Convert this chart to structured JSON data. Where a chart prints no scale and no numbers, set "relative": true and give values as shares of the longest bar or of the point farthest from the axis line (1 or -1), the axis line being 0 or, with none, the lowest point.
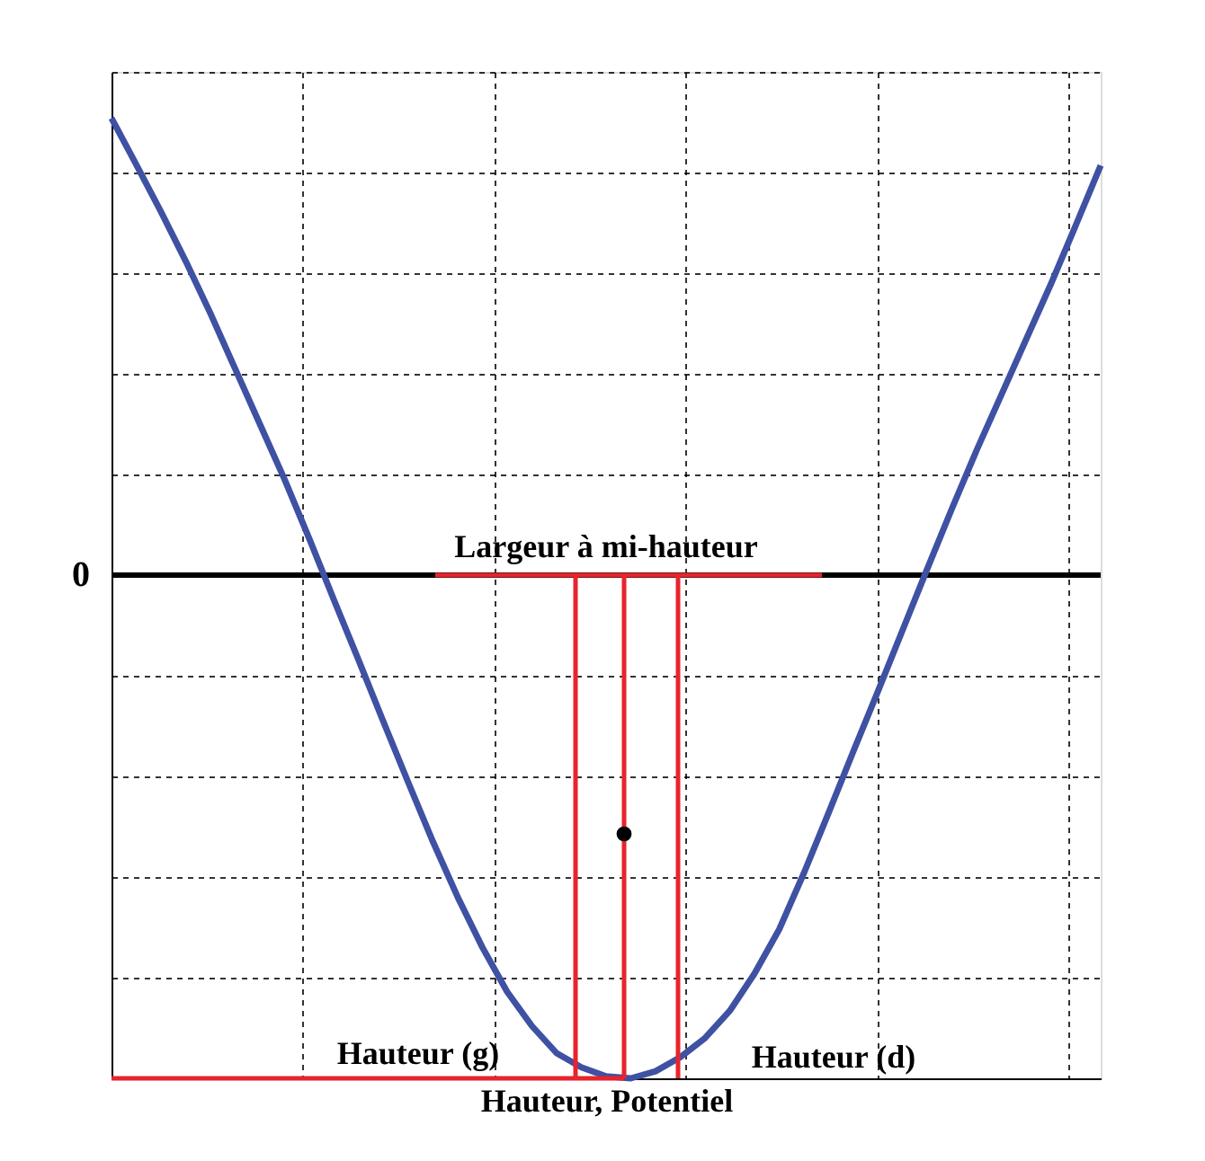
{
  "chart_data": {
    "type": "line",
    "xlabel": "Hauteur, Potentiel",
    "relative": true,
    "categories": [
      null,
      null,
      null,
      null,
      null,
      null,
      null,
      null,
      null,
      null,
      null,
      null,
      null,
      null,
      null,
      null,
      null,
      null,
      null,
      null,
      null,
      null,
      null,
      null,
      null,
      null,
      null,
      null,
      null,
      null,
      null,
      null,
      null,
      null,
      null,
      null,
      null,
      null,
      null,
      null,
      null
    ],
    "grid": true,
    "legend": false,
    "line_style": "solid",
    "series": [
      {
        "color": "#3f51a3",
        "values": [
          0.908,
          0.816,
          0.722,
          0.624,
          0.52,
          0.41,
          0.3,
          0.19,
          0.072,
          -0.05,
          -0.17,
          -0.292,
          -0.412,
          -0.53,
          -0.64,
          -0.74,
          -0.828,
          -0.896,
          -0.95,
          -0.978,
          -0.996,
          -1.0,
          -0.986,
          -0.958,
          -0.92,
          -0.866,
          -0.792,
          -0.704,
          -0.592,
          -0.472,
          -0.35,
          -0.23,
          -0.108,
          0.014,
          0.134,
          0.25,
          0.36,
          0.47,
          0.58,
          0.696,
          0.814
        ]
      }
    ],
    "annotations": [
      "0",
      "Largeur à mi-hauteur",
      "Hauteur (g)",
      "Hauteur (d)"
    ]
  }
}
